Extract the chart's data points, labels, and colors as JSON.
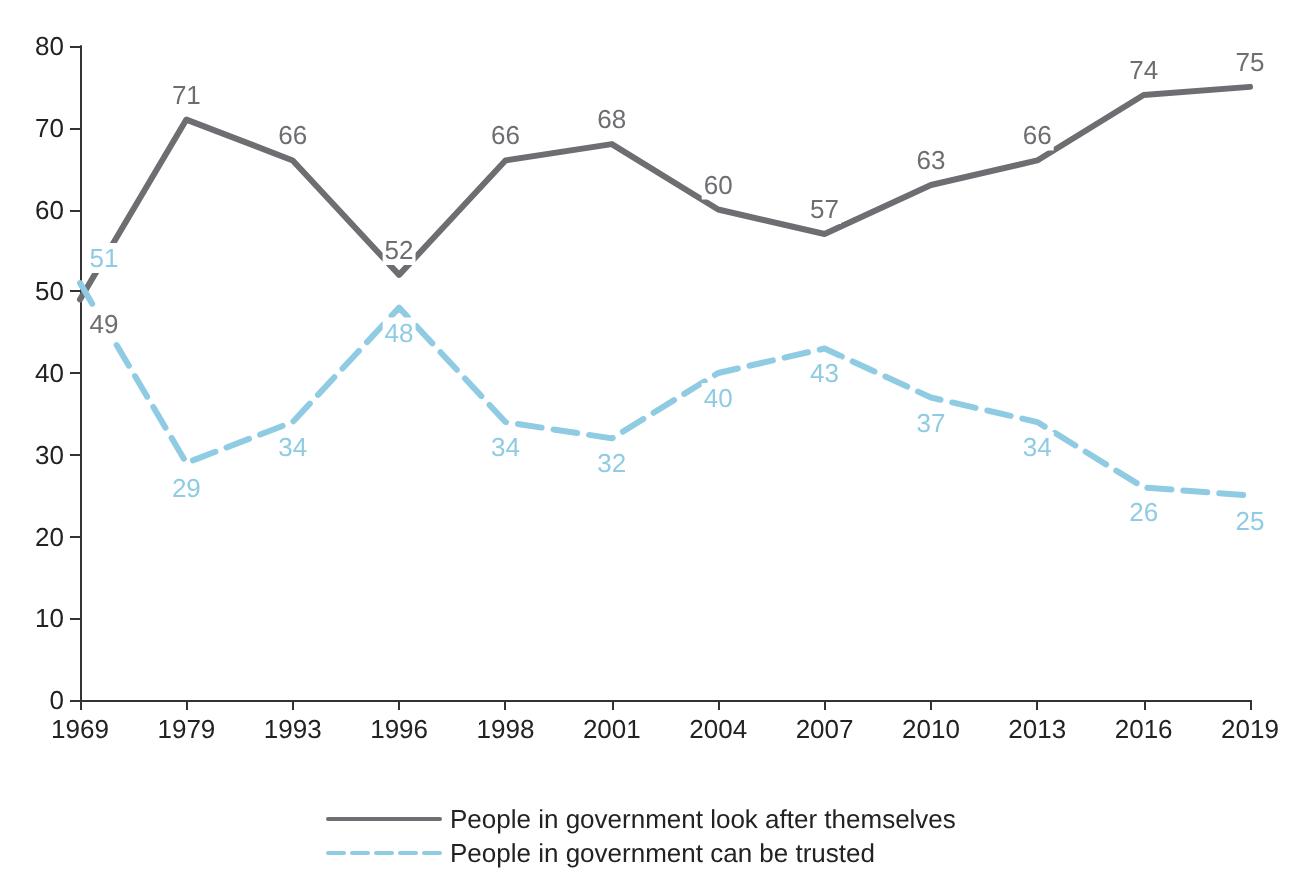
{
  "chart_data": {
    "type": "line",
    "categories": [
      "1969",
      "1979",
      "1993",
      "1996",
      "1998",
      "2001",
      "2004",
      "2007",
      "2010",
      "2013",
      "2016",
      "2019"
    ],
    "series": [
      {
        "name": "People in government look after themselves",
        "color": "#6d6e71",
        "line_style": "solid",
        "values": [
          49,
          71,
          66,
          52,
          66,
          68,
          60,
          57,
          63,
          66,
          74,
          75
        ]
      },
      {
        "name": "People in government can be trusted",
        "color": "#8fcbe3",
        "line_style": "dashed",
        "values": [
          51,
          29,
          34,
          48,
          34,
          32,
          40,
          43,
          37,
          34,
          26,
          25
        ]
      }
    ],
    "ylim": [
      0,
      80
    ],
    "yticks": [
      0,
      10,
      20,
      30,
      40,
      50,
      60,
      70,
      80
    ],
    "data_labels": true,
    "marker": "none",
    "legend": "bottom",
    "grid": false
  }
}
